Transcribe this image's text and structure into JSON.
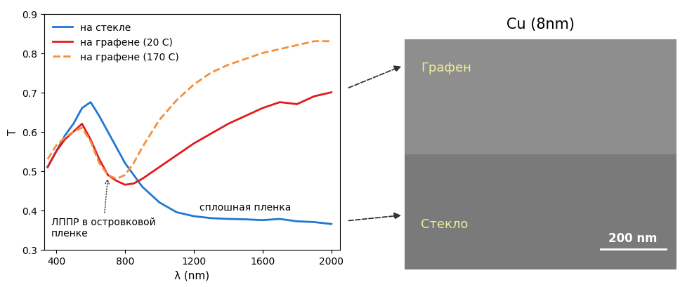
{
  "chart_data": {
    "type": "line",
    "x_label": "λ (nm)",
    "y_label": "T",
    "x": [
      350,
      400,
      450,
      500,
      550,
      600,
      650,
      700,
      750,
      800,
      850,
      900,
      1000,
      1100,
      1200,
      1300,
      1400,
      1500,
      1600,
      1700,
      1800,
      1900,
      2000
    ],
    "series": [
      {
        "name": "на стекле",
        "color": "#1f77d4",
        "line_style": "solid",
        "values": [
          0.51,
          0.55,
          0.59,
          0.62,
          0.66,
          0.675,
          0.64,
          0.6,
          0.56,
          0.52,
          0.49,
          0.46,
          0.42,
          0.395,
          0.385,
          0.38,
          0.378,
          0.377,
          0.375,
          0.378,
          0.372,
          0.37,
          0.365
        ]
      },
      {
        "name": "на графене (20 C)",
        "color": "#e31a1c",
        "line_style": "solid",
        "values": [
          0.51,
          0.55,
          0.58,
          0.6,
          0.62,
          0.58,
          0.53,
          0.49,
          0.475,
          0.465,
          0.468,
          0.48,
          0.51,
          0.54,
          0.57,
          0.595,
          0.62,
          0.64,
          0.66,
          0.675,
          0.67,
          0.69,
          0.7
        ]
      },
      {
        "name": "на графене (170 C)",
        "color": "#f4903c",
        "line_style": "dashed",
        "values": [
          0.53,
          0.565,
          0.585,
          0.6,
          0.61,
          0.575,
          0.52,
          0.49,
          0.48,
          0.49,
          0.52,
          0.56,
          0.63,
          0.68,
          0.72,
          0.75,
          0.77,
          0.785,
          0.8,
          0.81,
          0.82,
          0.83,
          0.83
        ]
      }
    ],
    "xlim": [
      330,
      2050
    ],
    "ylim": [
      0.3,
      0.9
    ],
    "xticks": [
      400,
      800,
      1200,
      1600,
      2000
    ],
    "yticks": [
      0.3,
      0.4,
      0.5,
      0.6,
      0.7,
      0.8,
      0.9
    ],
    "legend": "upper left",
    "grid": false,
    "annotations": [
      "ЛППР в островковой\nпленке",
      "сплошная пленка"
    ]
  },
  "image_panel": {
    "title": "Cu (8nm)",
    "top_label": "Графен",
    "bottom_label": "Стекло",
    "scale_bar": "200 nm"
  }
}
